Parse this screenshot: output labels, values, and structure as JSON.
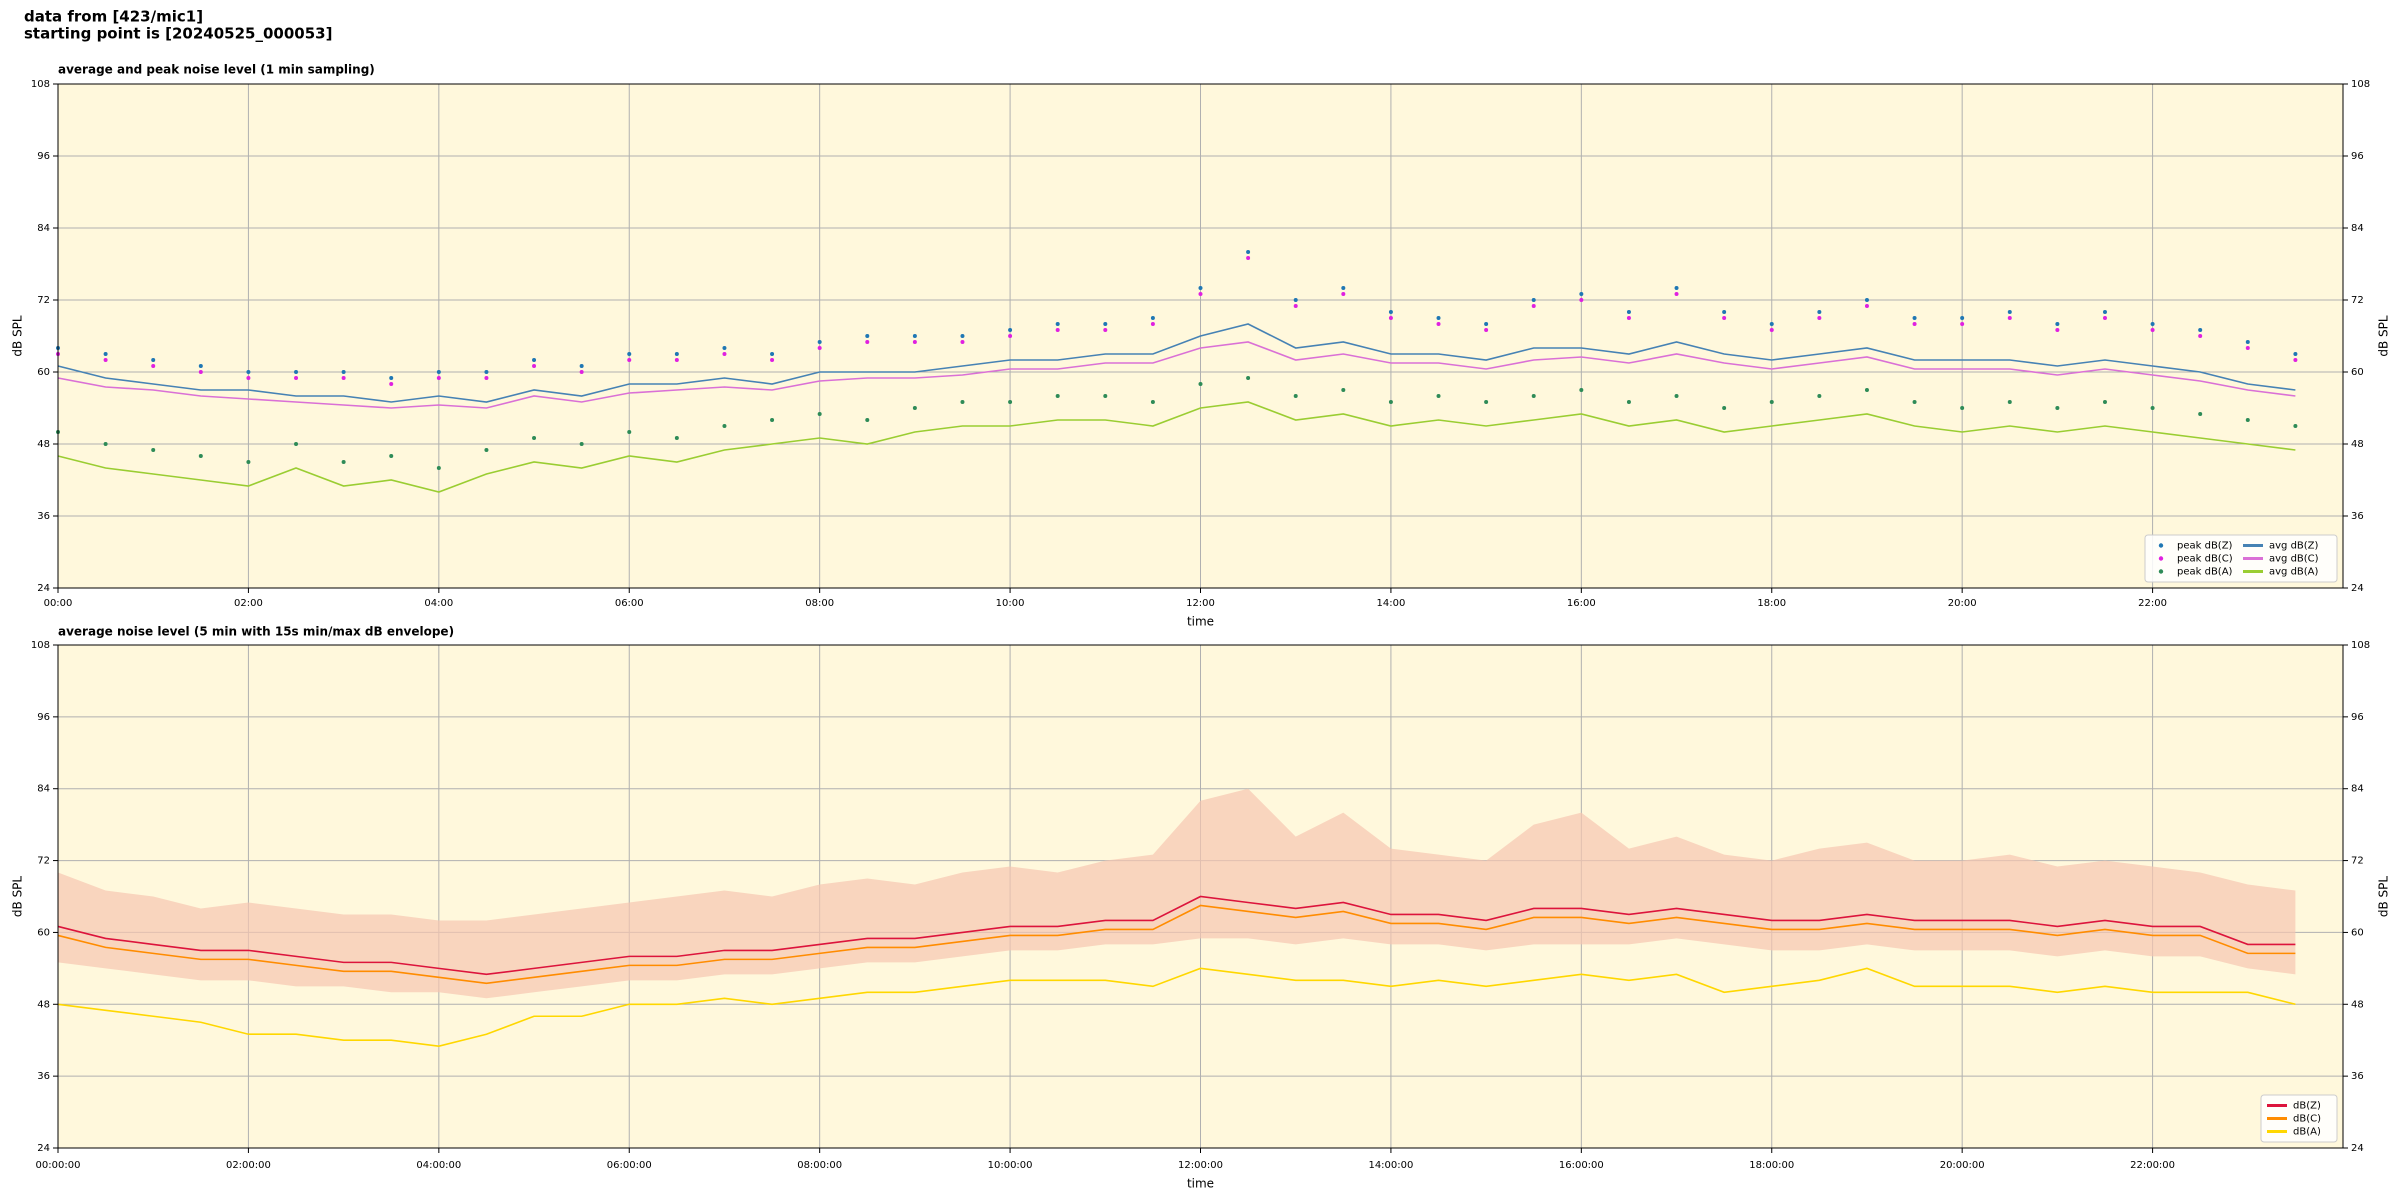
{
  "suptitle": [
    "data from [423/mic1]",
    "starting point is [20240525_000053]"
  ],
  "chart_data": [
    {
      "type": "line",
      "title": "average and peak noise level (1 min sampling)",
      "xlabel": "time",
      "ylabel": "dB SPL",
      "xlim": [
        0,
        1440
      ],
      "ylim": [
        24,
        108
      ],
      "yticks": [
        24,
        36,
        48,
        60,
        72,
        84,
        96,
        108
      ],
      "xticks": [
        {
          "value": 0,
          "label": "00:00"
        },
        {
          "value": 120,
          "label": "02:00"
        },
        {
          "value": 240,
          "label": "04:00"
        },
        {
          "value": 360,
          "label": "06:00"
        },
        {
          "value": 480,
          "label": "08:00"
        },
        {
          "value": 600,
          "label": "10:00"
        },
        {
          "value": 720,
          "label": "12:00"
        },
        {
          "value": 840,
          "label": "14:00"
        },
        {
          "value": 960,
          "label": "16:00"
        },
        {
          "value": 1080,
          "label": "18:00"
        },
        {
          "value": 1200,
          "label": "20:00"
        },
        {
          "value": 1320,
          "label": "22:00"
        }
      ],
      "grid": true,
      "background": "#fff8dc",
      "legend": "lower right",
      "legend_columns": 2,
      "x": [
        0,
        30,
        60,
        90,
        120,
        150,
        180,
        210,
        240,
        270,
        300,
        330,
        360,
        390,
        420,
        450,
        480,
        510,
        540,
        570,
        600,
        630,
        660,
        690,
        720,
        750,
        780,
        810,
        840,
        870,
        900,
        930,
        960,
        990,
        1020,
        1050,
        1080,
        1110,
        1140,
        1170,
        1200,
        1230,
        1260,
        1290,
        1320,
        1350,
        1380,
        1410
      ],
      "series": [
        {
          "name": "peak dB(Z)",
          "color": "#1f77b4",
          "style": "dots",
          "values": [
            64,
            63,
            62,
            61,
            60,
            60,
            60,
            59,
            60,
            60,
            62,
            61,
            63,
            63,
            64,
            63,
            65,
            66,
            66,
            66,
            67,
            68,
            68,
            69,
            74,
            80,
            72,
            74,
            70,
            69,
            68,
            72,
            73,
            70,
            74,
            70,
            68,
            70,
            72,
            69,
            69,
            70,
            68,
            70,
            68,
            67,
            65,
            63
          ]
        },
        {
          "name": "peak dB(C)",
          "color": "#e020e0",
          "style": "dots",
          "values": [
            63,
            62,
            61,
            60,
            59,
            59,
            59,
            58,
            59,
            59,
            61,
            60,
            62,
            62,
            63,
            62,
            64,
            65,
            65,
            65,
            66,
            67,
            67,
            68,
            73,
            79,
            71,
            73,
            69,
            68,
            67,
            71,
            72,
            69,
            73,
            69,
            67,
            69,
            71,
            68,
            68,
            69,
            67,
            69,
            67,
            66,
            64,
            62
          ]
        },
        {
          "name": "peak dB(A)",
          "color": "#2e8b57",
          "style": "dots",
          "values": [
            50,
            48,
            47,
            46,
            45,
            48,
            45,
            46,
            44,
            47,
            49,
            48,
            50,
            49,
            51,
            52,
            53,
            52,
            54,
            55,
            55,
            56,
            56,
            55,
            58,
            59,
            56,
            57,
            55,
            56,
            55,
            56,
            57,
            55,
            56,
            54,
            55,
            56,
            57,
            55,
            54,
            55,
            54,
            55,
            54,
            53,
            52,
            51
          ]
        },
        {
          "name": "avg dB(Z)",
          "color": "#4682b4",
          "style": "line",
          "values": [
            61,
            59,
            58,
            57,
            57,
            56,
            56,
            55,
            56,
            55,
            57,
            56,
            58,
            58,
            59,
            58,
            60,
            60,
            60,
            61,
            62,
            62,
            63,
            63,
            66,
            68,
            64,
            65,
            63,
            63,
            62,
            64,
            64,
            63,
            65,
            63,
            62,
            63,
            64,
            62,
            62,
            62,
            61,
            62,
            61,
            60,
            58,
            57
          ]
        },
        {
          "name": "avg dB(C)",
          "color": "#da70d6",
          "style": "line",
          "values": [
            59,
            57.5,
            57,
            56,
            55.5,
            55,
            54.5,
            54,
            54.5,
            54,
            56,
            55,
            56.5,
            57,
            57.5,
            57,
            58.5,
            59,
            59,
            59.5,
            60.5,
            60.5,
            61.5,
            61.5,
            64,
            65,
            62,
            63,
            61.5,
            61.5,
            60.5,
            62,
            62.5,
            61.5,
            63,
            61.5,
            60.5,
            61.5,
            62.5,
            60.5,
            60.5,
            60.5,
            59.5,
            60.5,
            59.5,
            58.5,
            57,
            56
          ]
        },
        {
          "name": "avg dB(A)",
          "color": "#9acd32",
          "style": "line",
          "values": [
            46,
            44,
            43,
            42,
            41,
            44,
            41,
            42,
            40,
            43,
            45,
            44,
            46,
            45,
            47,
            48,
            49,
            48,
            50,
            51,
            51,
            52,
            52,
            51,
            54,
            55,
            52,
            53,
            51,
            52,
            51,
            52,
            53,
            51,
            52,
            50,
            51,
            52,
            53,
            51,
            50,
            51,
            50,
            51,
            50,
            49,
            48,
            47
          ]
        }
      ]
    },
    {
      "type": "line",
      "title": "average noise level (5 min with 15s min/max dB envelope)",
      "xlabel": "time",
      "ylabel": "dB SPL",
      "xlim": [
        0,
        1440
      ],
      "ylim": [
        24,
        108
      ],
      "yticks": [
        24,
        36,
        48,
        60,
        72,
        84,
        96,
        108
      ],
      "xticks": [
        {
          "value": 0,
          "label": "00:00:00"
        },
        {
          "value": 120,
          "label": "02:00:00"
        },
        {
          "value": 240,
          "label": "04:00:00"
        },
        {
          "value": 360,
          "label": "06:00:00"
        },
        {
          "value": 480,
          "label": "08:00:00"
        },
        {
          "value": 600,
          "label": "10:00:00"
        },
        {
          "value": 720,
          "label": "12:00:00"
        },
        {
          "value": 840,
          "label": "14:00:00"
        },
        {
          "value": 960,
          "label": "16:00:00"
        },
        {
          "value": 1080,
          "label": "18:00:00"
        },
        {
          "value": 1200,
          "label": "20:00:00"
        },
        {
          "value": 1320,
          "label": "22:00:00"
        }
      ],
      "grid": true,
      "background": "#fff8dc",
      "legend": "lower right",
      "legend_columns": 1,
      "x": [
        0,
        30,
        60,
        90,
        120,
        150,
        180,
        210,
        240,
        270,
        300,
        330,
        360,
        390,
        420,
        450,
        480,
        510,
        540,
        570,
        600,
        630,
        660,
        690,
        720,
        750,
        780,
        810,
        840,
        870,
        900,
        930,
        960,
        990,
        1020,
        1050,
        1080,
        1110,
        1140,
        1170,
        1200,
        1230,
        1260,
        1290,
        1320,
        1350,
        1380,
        1410
      ],
      "envelope": {
        "color": "#f7c6b0",
        "upper": [
          70,
          67,
          66,
          64,
          65,
          64,
          63,
          63,
          62,
          62,
          63,
          64,
          65,
          66,
          67,
          66,
          68,
          69,
          68,
          70,
          71,
          70,
          72,
          73,
          82,
          84,
          76,
          80,
          74,
          73,
          72,
          78,
          80,
          74,
          76,
          73,
          72,
          74,
          75,
          72,
          72,
          73,
          71,
          72,
          71,
          70,
          68,
          67
        ],
        "lower": [
          55,
          54,
          53,
          52,
          52,
          51,
          51,
          50,
          50,
          49,
          50,
          51,
          52,
          52,
          53,
          53,
          54,
          55,
          55,
          56,
          57,
          57,
          58,
          58,
          59,
          59,
          58,
          59,
          58,
          58,
          57,
          58,
          58,
          58,
          59,
          58,
          57,
          57,
          58,
          57,
          57,
          57,
          56,
          57,
          56,
          56,
          54,
          53
        ]
      },
      "series": [
        {
          "name": "dB(Z)",
          "color": "#dc143c",
          "style": "line",
          "values": [
            61,
            59,
            58,
            57,
            57,
            56,
            55,
            55,
            54,
            53,
            54,
            55,
            56,
            56,
            57,
            57,
            58,
            59,
            59,
            60,
            61,
            61,
            62,
            62,
            66,
            65,
            64,
            65,
            63,
            63,
            62,
            64,
            64,
            63,
            64,
            63,
            62,
            62,
            63,
            62,
            62,
            62,
            61,
            62,
            61,
            61,
            58,
            58
          ]
        },
        {
          "name": "dB(C)",
          "color": "#ff8c00",
          "style": "line",
          "values": [
            59.5,
            57.5,
            56.5,
            55.5,
            55.5,
            54.5,
            53.5,
            53.5,
            52.5,
            51.5,
            52.5,
            53.5,
            54.5,
            54.5,
            55.5,
            55.5,
            56.5,
            57.5,
            57.5,
            58.5,
            59.5,
            59.5,
            60.5,
            60.5,
            64.5,
            63.5,
            62.5,
            63.5,
            61.5,
            61.5,
            60.5,
            62.5,
            62.5,
            61.5,
            62.5,
            61.5,
            60.5,
            60.5,
            61.5,
            60.5,
            60.5,
            60.5,
            59.5,
            60.5,
            59.5,
            59.5,
            56.5,
            56.5
          ]
        },
        {
          "name": "dB(A)",
          "color": "#ffd700",
          "style": "line",
          "values": [
            48,
            47,
            46,
            45,
            43,
            43,
            42,
            42,
            41,
            43,
            46,
            46,
            48,
            48,
            49,
            48,
            49,
            50,
            50,
            51,
            52,
            52,
            52,
            51,
            54,
            53,
            52,
            52,
            51,
            52,
            51,
            52,
            53,
            52,
            53,
            50,
            51,
            52,
            54,
            51,
            51,
            51,
            50,
            51,
            50,
            50,
            50,
            48
          ]
        }
      ]
    }
  ]
}
